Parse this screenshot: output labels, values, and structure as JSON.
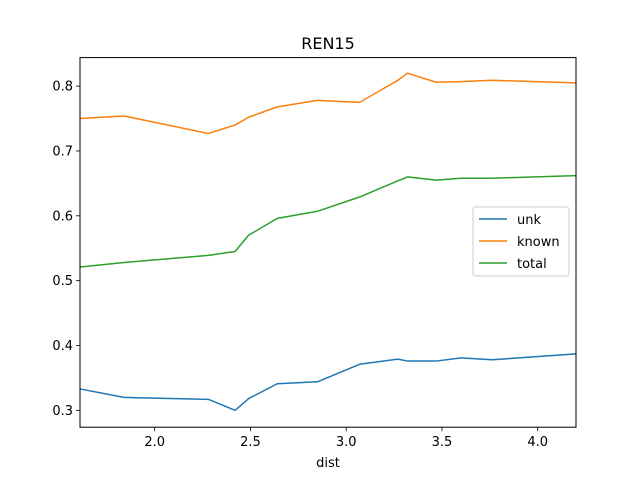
{
  "chart_data": {
    "type": "line",
    "title": "REN15",
    "xlabel": "dist",
    "ylabel": "",
    "xlim": [
      1.61,
      4.2
    ],
    "ylim": [
      0.274,
      0.844
    ],
    "xticks": [
      2.0,
      2.5,
      3.0,
      3.5,
      4.0
    ],
    "xtick_labels": [
      "2.0",
      "2.5",
      "3.0",
      "3.5",
      "4.0"
    ],
    "yticks": [
      0.3,
      0.4,
      0.5,
      0.6,
      0.7,
      0.8
    ],
    "ytick_labels": [
      "0.3",
      "0.4",
      "0.5",
      "0.6",
      "0.7",
      "0.8"
    ],
    "grid": false,
    "legend_position": "center-right",
    "series": [
      {
        "name": "unk",
        "color": "#1f77b4",
        "x": [
          1.61,
          1.84,
          2.28,
          2.42,
          2.49,
          2.64,
          2.85,
          3.07,
          3.27,
          3.32,
          3.47,
          3.6,
          3.76,
          4.2
        ],
        "y": [
          0.333,
          0.32,
          0.317,
          0.3,
          0.318,
          0.341,
          0.344,
          0.371,
          0.379,
          0.376,
          0.376,
          0.381,
          0.378,
          0.387
        ]
      },
      {
        "name": "known",
        "color": "#ff7f0e",
        "x": [
          1.61,
          1.84,
          2.28,
          2.42,
          2.49,
          2.64,
          2.85,
          3.07,
          3.27,
          3.32,
          3.47,
          3.6,
          3.76,
          4.2
        ],
        "y": [
          0.75,
          0.754,
          0.727,
          0.74,
          0.752,
          0.768,
          0.778,
          0.775,
          0.809,
          0.82,
          0.806,
          0.807,
          0.809,
          0.805
        ]
      },
      {
        "name": "total",
        "color": "#2ca02c",
        "x": [
          1.61,
          1.84,
          2.28,
          2.42,
          2.49,
          2.64,
          2.85,
          3.07,
          3.27,
          3.32,
          3.47,
          3.6,
          3.76,
          4.2
        ],
        "y": [
          0.521,
          0.528,
          0.539,
          0.545,
          0.57,
          0.596,
          0.607,
          0.629,
          0.654,
          0.66,
          0.655,
          0.658,
          0.658,
          0.662
        ]
      }
    ]
  }
}
